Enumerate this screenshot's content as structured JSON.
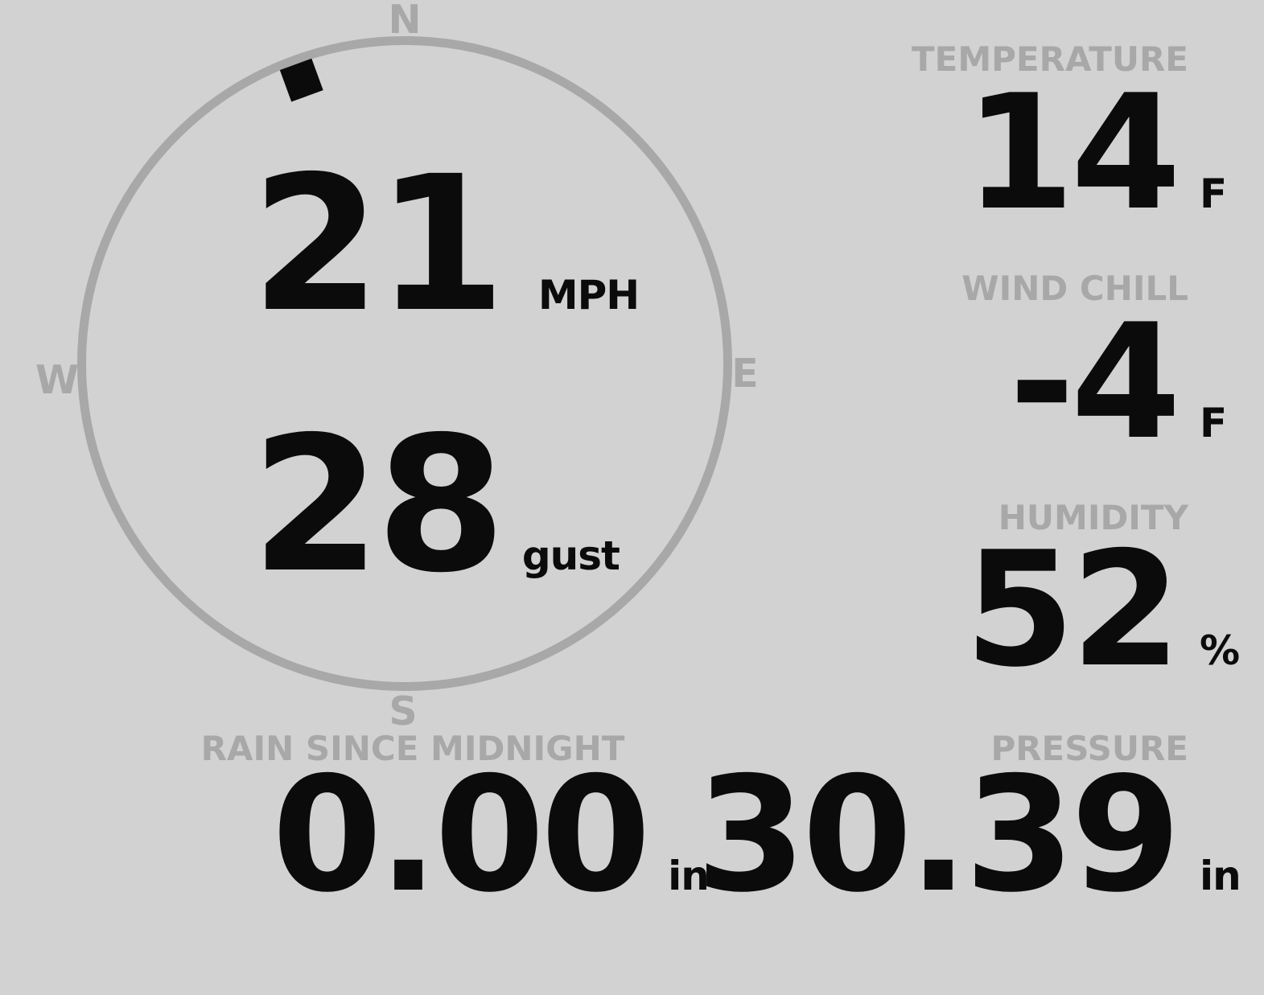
{
  "colors": {
    "background": "#d2d2d2",
    "muted": "#a8a8a8",
    "ink": "#0b0b0b"
  },
  "compass": {
    "cardinals": {
      "north": "N",
      "east": "E",
      "south": "S",
      "west": "W"
    },
    "wind_direction_deg": 340,
    "speed": {
      "value": "21",
      "unit": "MPH"
    },
    "gust": {
      "value": "28",
      "unit": "gust"
    }
  },
  "stats": {
    "temperature": {
      "label": "TEMPERATURE",
      "value": "14",
      "unit": "F"
    },
    "wind_chill": {
      "label": "WIND CHILL",
      "value": "-4",
      "unit": "F"
    },
    "humidity": {
      "label": "HUMIDITY",
      "value": "52",
      "unit": "%"
    },
    "rain_since_midnight": {
      "label": "RAIN SINCE MIDNIGHT",
      "value": "0.00",
      "unit": "in"
    },
    "pressure": {
      "label": "PRESSURE",
      "value": "30.39",
      "unit": "in"
    }
  }
}
